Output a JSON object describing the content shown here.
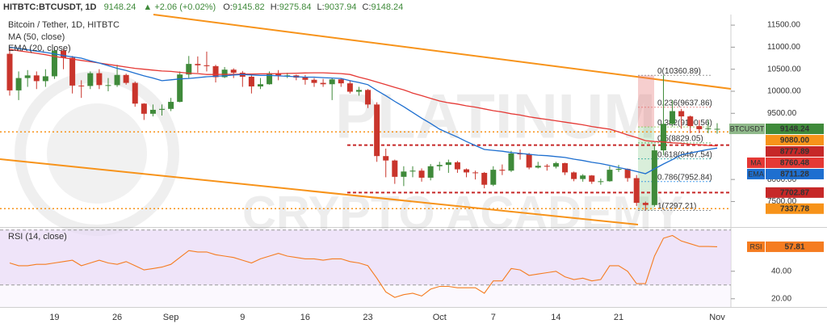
{
  "chart_data": {
    "type": "candlestick",
    "header": "HITBTC:BTCUSDT, 1D",
    "change": "▲ +2.06 (+0.02%)",
    "ohlc_prefixes": [
      "O:",
      "H:",
      "L:",
      "C:"
    ],
    "title": "Bitcoin / Tether, 1D, HITBTC",
    "symbol": "BTCUSDT",
    "watermark": [
      "PLATINUM",
      "CRYPTO ACADEMY"
    ],
    "up_color": "#3f8a3a",
    "down_color": "#c9352c",
    "categories": [
      null,
      null,
      null,
      null,
      null,
      "19",
      null,
      null,
      null,
      null,
      null,
      null,
      "26",
      null,
      null,
      null,
      null,
      null,
      "Sep",
      null,
      null,
      null,
      null,
      null,
      null,
      null,
      "9",
      null,
      null,
      null,
      null,
      null,
      null,
      "16",
      null,
      null,
      null,
      null,
      null,
      null,
      "23",
      null,
      null,
      null,
      null,
      null,
      null,
      null,
      "Oct",
      null,
      null,
      null,
      null,
      null,
      "7",
      null,
      null,
      null,
      null,
      null,
      null,
      "14",
      null,
      null,
      null,
      null,
      null,
      null,
      "21",
      null,
      null,
      null,
      null,
      null,
      null,
      null,
      null,
      null,
      null,
      "Nov"
    ],
    "open": [
      10850,
      10020,
      10300,
      10360,
      10230,
      10340,
      10920,
      10760,
      10130,
      10120,
      10410,
      10140,
      10140,
      10370,
      10190,
      9720,
      9490,
      9580,
      9600,
      9760,
      10380,
      10620,
      10590,
      10570,
      10320,
      10490,
      10420,
      10330,
      10110,
      10160,
      10410,
      10360,
      10360,
      10310,
      10260,
      10190,
      10160,
      10270,
      10180,
      9990,
      10030,
      9700,
      8530,
      8430,
      8060,
      8180,
      8200,
      8040,
      8300,
      8330,
      8390,
      8230,
      8160,
      8150,
      7880,
      8220,
      8200,
      8590,
      8570,
      8270,
      8310,
      8290,
      8370,
      8160,
      8010,
      8090,
      7950,
      7960,
      8220,
      8240,
      8030,
      7470,
      7420,
      8660,
      9260,
      9550,
      9430,
      9210,
      9140,
      9145.82
    ],
    "high": [
      10950,
      10450,
      10480,
      10450,
      10500,
      11000,
      10950,
      10800,
      10250,
      10450,
      10500,
      10300,
      10600,
      10400,
      10220,
      9730,
      9700,
      9700,
      9850,
      10450,
      10800,
      10790,
      10900,
      10600,
      10550,
      10520,
      10460,
      10380,
      10300,
      10450,
      10480,
      10420,
      10380,
      10370,
      10300,
      10280,
      10300,
      10300,
      10250,
      10100,
      10050,
      9750,
      8700,
      8450,
      8300,
      8300,
      8250,
      8350,
      8400,
      8450,
      8420,
      8250,
      8200,
      8170,
      8300,
      8340,
      8650,
      8680,
      8600,
      8400,
      8350,
      8400,
      8380,
      8180,
      8120,
      8100,
      8020,
      8300,
      8330,
      8250,
      8100,
      7500,
      8800,
      10360.89,
      9800,
      9600,
      9450,
      9350,
      9350,
      9275.84
    ],
    "low": [
      9900,
      9800,
      10100,
      10050,
      10100,
      10280,
      10500,
      9950,
      9850,
      10050,
      10050,
      10000,
      10100,
      10150,
      9650,
      9350,
      9430,
      9450,
      9550,
      9750,
      10300,
      10420,
      10450,
      10200,
      10300,
      10300,
      10100,
      9950,
      10050,
      10150,
      10250,
      10300,
      10250,
      10150,
      10100,
      10100,
      9800,
      10100,
      9950,
      9900,
      9620,
      8400,
      8050,
      7900,
      7850,
      8050,
      7950,
      7980,
      8200,
      8150,
      8150,
      8050,
      8000,
      7800,
      7850,
      8100,
      8170,
      8450,
      8230,
      8250,
      8200,
      8250,
      8100,
      7960,
      7950,
      7900,
      7880,
      7950,
      8170,
      7950,
      7400,
      7297.21,
      7380,
      8550,
      9200,
      9150,
      9050,
      9050,
      9050,
      9037.94
    ],
    "close": [
      10020,
      10300,
      10360,
      10230,
      10340,
      10920,
      10760,
      10130,
      10120,
      10410,
      10140,
      10140,
      10370,
      10190,
      9720,
      9490,
      9580,
      9600,
      9760,
      10380,
      10620,
      10590,
      10570,
      10320,
      10490,
      10420,
      10330,
      10110,
      10160,
      10410,
      10360,
      10360,
      10310,
      10260,
      10190,
      10160,
      10270,
      10180,
      9990,
      10030,
      9700,
      8530,
      8430,
      8060,
      8180,
      8200,
      8040,
      8300,
      8330,
      8390,
      8230,
      8160,
      8150,
      7880,
      8220,
      8200,
      8590,
      8570,
      8270,
      8310,
      8290,
      8370,
      8160,
      8010,
      8090,
      7950,
      7960,
      8220,
      8240,
      8030,
      7470,
      7420,
      8660,
      9260,
      9550,
      9430,
      9210,
      9140,
      9160,
      9148.24
    ],
    "series": [
      {
        "name": "MA (50, close)",
        "tag": "MA",
        "color": "#e53935",
        "values": [
          10950,
          10920,
          10890,
          10860,
          10830,
          10790,
          10760,
          10730,
          10700,
          10670,
          10640,
          10610,
          10580,
          10550,
          10520,
          10500,
          10480,
          10460,
          10450,
          10430,
          10410,
          10400,
          10380,
          10380,
          10385,
          10385,
          10390,
          10390,
          10395,
          10395,
          10400,
          10405,
          10410,
          10415,
          10420,
          10420,
          10410,
          10400,
          10380,
          10320,
          10270,
          10210,
          10150,
          10090,
          10030,
          9960,
          9900,
          9840,
          9780,
          9740,
          9710,
          9670,
          9640,
          9600,
          9560,
          9530,
          9490,
          9460,
          9420,
          9390,
          9360,
          9330,
          9300,
          9270,
          9240,
          9200,
          9170,
          9140,
          9080,
          9010,
          8950,
          8880,
          8860,
          8850,
          8830,
          8820,
          8800,
          8790,
          8770,
          8760.48
        ]
      },
      {
        "name": "EMA (20, close)",
        "tag": "EMA",
        "color": "#1e6fd0",
        "values": [
          11000,
          10970,
          10940,
          10910,
          10880,
          10850,
          10810,
          10780,
          10750,
          10690,
          10640,
          10580,
          10520,
          10470,
          10410,
          10350,
          10300,
          10240,
          10260,
          10280,
          10290,
          10310,
          10330,
          10340,
          10350,
          10370,
          10380,
          10370,
          10360,
          10360,
          10350,
          10340,
          10330,
          10320,
          10320,
          10310,
          10300,
          10290,
          10240,
          10200,
          10150,
          10020,
          9900,
          9770,
          9650,
          9520,
          9390,
          9270,
          9140,
          9050,
          8960,
          8860,
          8770,
          8680,
          8660,
          8640,
          8610,
          8590,
          8570,
          8550,
          8540,
          8520,
          8500,
          8460,
          8430,
          8390,
          8360,
          8320,
          8270,
          8230,
          8180,
          8130,
          8240,
          8350,
          8450,
          8560,
          8600,
          8640,
          8680,
          8711.28
        ]
      }
    ],
    "ylim": [
      6940,
      11740
    ],
    "yticks": [
      {
        "value": 11500,
        "label": "11500.00"
      },
      {
        "value": 11000,
        "label": "11000.00"
      },
      {
        "value": 10500,
        "label": "10500.00"
      },
      {
        "value": 10000,
        "label": "10000.00"
      },
      {
        "value": 9500,
        "label": "9500.00"
      },
      {
        "value": 8000,
        "label": "8000.00"
      },
      {
        "value": 7500,
        "label": "7500.00"
      }
    ],
    "levels": [
      {
        "value": 9080,
        "label": "9080.00",
        "color": "#f7931a",
        "style": "dotted"
      },
      {
        "value": 8777.89,
        "color": "#c62828",
        "style": "dashed"
      },
      {
        "value": 7702.87,
        "color": "#c62828",
        "style": "dashed"
      },
      {
        "value": 7337.78,
        "color": "#f7931a",
        "style": "dotted"
      }
    ],
    "fib": [
      {
        "value": 10360.89,
        "label": "0(10360.89)",
        "color": "#808080"
      },
      {
        "value": 9637.86,
        "label": "0.236(9637.86)",
        "color": "#e57373"
      },
      {
        "value": 9190.56,
        "label": "0.382(9190.56)",
        "color": "#8bc34a"
      },
      {
        "value": 8829.05,
        "label": "0.5(8829.05)",
        "color": "#4caf50"
      },
      {
        "value": 8467.54,
        "label": "0.618(8467.54)",
        "color": "#26a69a"
      },
      {
        "value": 7952.84,
        "label": "0.786(7952.84)",
        "color": "#1e88e5"
      },
      {
        "value": 7297.21,
        "label": "1(7297.21)",
        "color": "#808080"
      }
    ],
    "rsi": {
      "name": "RSI (14, close)",
      "tag": "RSI",
      "color": "#f57c20",
      "values": [
        46,
        44,
        44,
        45,
        45,
        46,
        47,
        48,
        44,
        46,
        48,
        46,
        45,
        47,
        44,
        41,
        42,
        43,
        45,
        50,
        55,
        54,
        54,
        52,
        51,
        50,
        48,
        46,
        49,
        51,
        53,
        51,
        50,
        49,
        49,
        48,
        49,
        49,
        47,
        46,
        44,
        35,
        25,
        21,
        23,
        24,
        22,
        27,
        29,
        29,
        28,
        28,
        28,
        24,
        33,
        33,
        42,
        41,
        37,
        38,
        39,
        40,
        36,
        34,
        35,
        33,
        34,
        44,
        44,
        40,
        31,
        31,
        51,
        64,
        66,
        62,
        60,
        58,
        58,
        57.81
      ],
      "ylim": [
        14,
        71
      ],
      "yticks": [
        {
          "value": 40,
          "label": "40.00"
        },
        {
          "value": 20,
          "label": "20.00"
        }
      ],
      "band": [
        30,
        70
      ]
    }
  }
}
